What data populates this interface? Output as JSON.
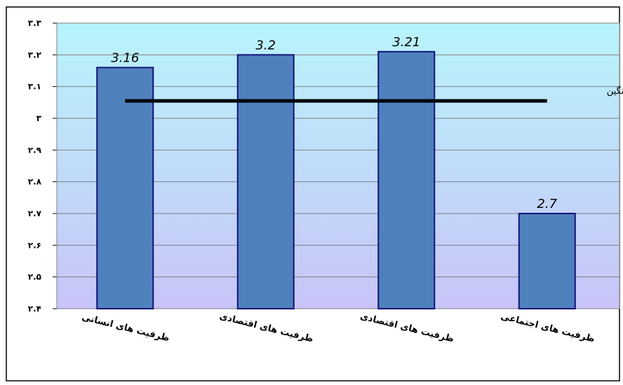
{
  "chart_data": {
    "type": "bar",
    "categories": [
      "ظرفیت های انسانی",
      "ظرفیت های اقتصادی",
      "ظرفیت های اقتصادی",
      "ظرفیت های اجتماعی"
    ],
    "values": [
      3.16,
      3.2,
      3.21,
      2.7
    ],
    "data_labels": [
      "3.16",
      "3.2",
      "3.21",
      "2.7"
    ],
    "ylim": [
      2.4,
      3.3
    ],
    "yticks": [
      2.4,
      2.5,
      2.6,
      2.7,
      2.8,
      2.9,
      3.0,
      3.1,
      3.2,
      3.3
    ],
    "ytick_labels": [
      "۲.۴",
      "۲.۵",
      "۲.۶",
      "۲.۷",
      "۲.۸",
      "۲.۹",
      "۳",
      "۳.۱",
      "۳.۲",
      "۳.۳"
    ],
    "reference_line": {
      "label": "خط میانگین",
      "value": 3.055
    },
    "grid": true,
    "colors": {
      "bar_fill": "#4f81bd",
      "bar_stroke": "#14137a",
      "plot_bg_top": "#b8f4fb",
      "plot_bg_bottom": "#c8c4f8",
      "grid": "#808080",
      "reference_line": "#000000"
    }
  }
}
